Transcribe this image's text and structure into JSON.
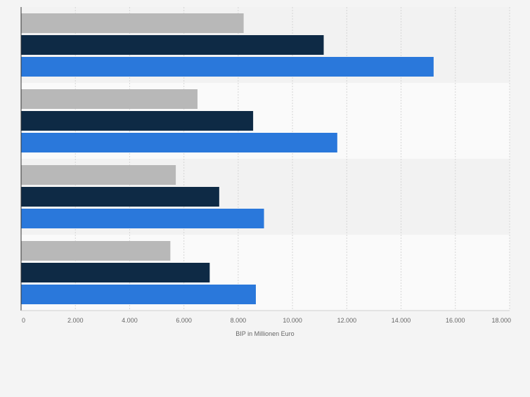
{
  "chart_data": {
    "type": "bar",
    "orientation": "horizontal",
    "categories": [
      "",
      "",
      "",
      ""
    ],
    "series": [
      {
        "values": [
          8200,
          6500,
          5700,
          5500
        ],
        "color": "#b8b8b8"
      },
      {
        "values": [
          11150,
          8550,
          7300,
          6950
        ],
        "color": "#0e2a45"
      },
      {
        "values": [
          15200,
          11650,
          8950,
          8650
        ],
        "color": "#2a78db"
      }
    ],
    "xlabel": "BIP in Millionen Euro",
    "xlim": [
      0,
      18000
    ],
    "xticks": [
      0,
      2000,
      4000,
      6000,
      8000,
      10000,
      12000,
      14000,
      16000,
      18000
    ],
    "xtick_labels": [
      "0",
      "2.000",
      "4.000",
      "6.000",
      "8.000",
      "10.000",
      "12.000",
      "14.000",
      "16.000",
      "18.000"
    ],
    "grid": "vertical-dashed",
    "band_colors": [
      "#f2f2f2",
      "#fafafa"
    ]
  }
}
